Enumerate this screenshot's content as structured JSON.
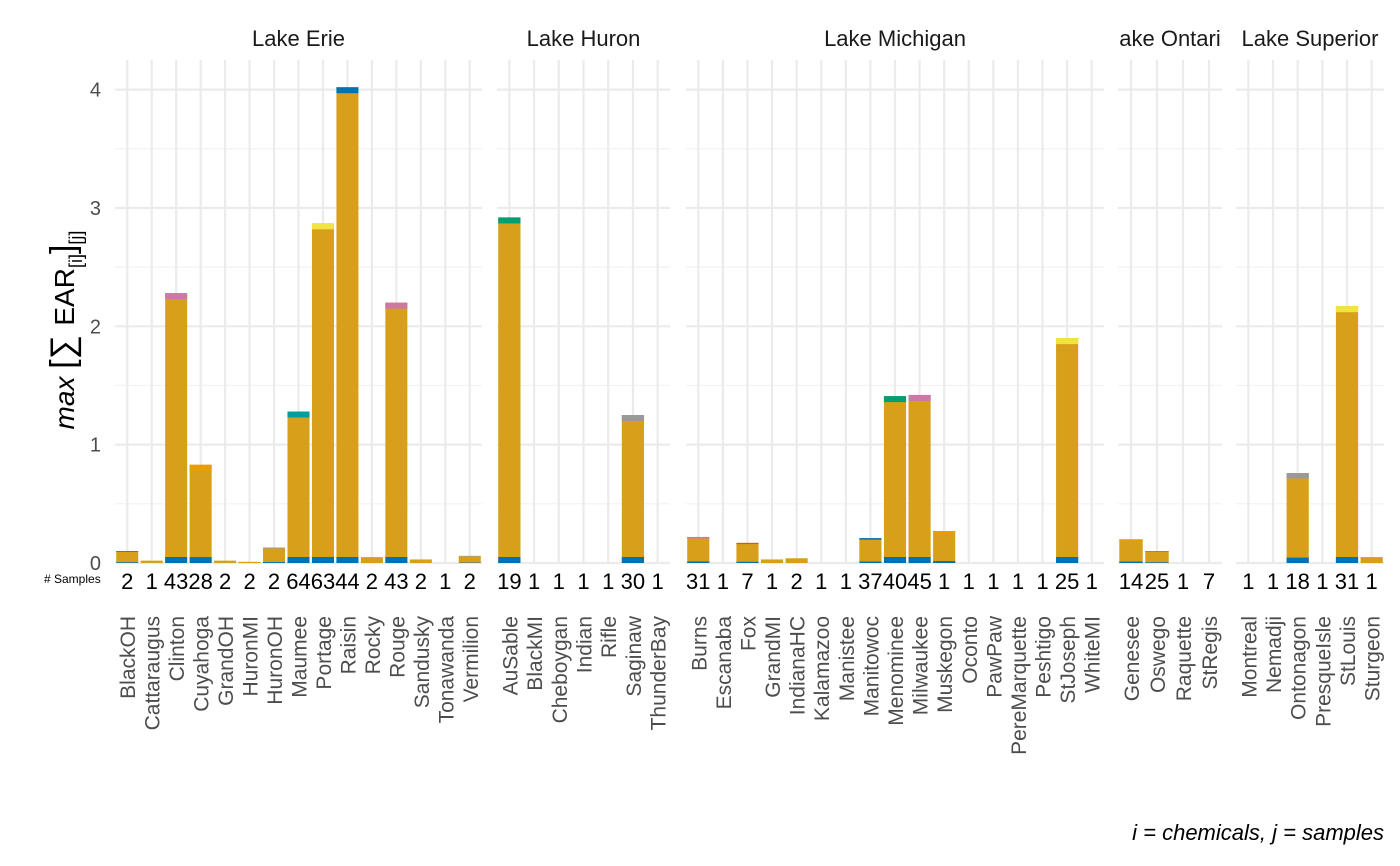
{
  "chart_data": {
    "type": "bar",
    "stacked": true,
    "facet_variable": "lake",
    "y_axis": {
      "label": "max [∑ EAR[i]][j]",
      "ylim": [
        0,
        4.2
      ],
      "ticks": [
        0,
        1,
        2,
        3,
        4
      ]
    },
    "grid": true,
    "legend": "none",
    "count_row_label": "# Samples",
    "caption": "i = chemicals, j = samples",
    "palette": [
      "#0072B2",
      "#009E73",
      "#CC79A7",
      "#E69F00",
      "#D55E00",
      "#56B4E9",
      "#999999",
      "#009E9E",
      "#F0E442"
    ],
    "panels": [
      {
        "title": "Lake Erie",
        "sites": [
          {
            "name": "BlackOH",
            "n": "2",
            "total": 0.1
          },
          {
            "name": "Cattaraugus",
            "n": "1",
            "total": 0.02
          },
          {
            "name": "Clinton",
            "n": "43",
            "total": 2.28
          },
          {
            "name": "Cuyahoga",
            "n": "28",
            "total": 0.83
          },
          {
            "name": "GrandOH",
            "n": "2",
            "total": 0.02
          },
          {
            "name": "HuronMI",
            "n": "2",
            "total": 0.01
          },
          {
            "name": "HuronOH",
            "n": "2",
            "total": 0.13
          },
          {
            "name": "Maumee",
            "n": "64",
            "total": 1.28
          },
          {
            "name": "Portage",
            "n": "63",
            "total": 2.87
          },
          {
            "name": "Raisin",
            "n": "44",
            "total": 4.02
          },
          {
            "name": "Rocky",
            "n": "2",
            "total": 0.05
          },
          {
            "name": "Rouge",
            "n": "43",
            "total": 2.2
          },
          {
            "name": "Sandusky",
            "n": "2",
            "total": 0.03
          },
          {
            "name": "Tonawanda",
            "n": "1",
            "total": 0.0
          },
          {
            "name": "Vermilion",
            "n": "2",
            "total": 0.06
          }
        ]
      },
      {
        "title": "Lake Huron",
        "sites": [
          {
            "name": "AuSable",
            "n": "19",
            "total": 2.92
          },
          {
            "name": "BlackMI",
            "n": "1",
            "total": 0.0
          },
          {
            "name": "Cheboygan",
            "n": "1",
            "total": 0.0
          },
          {
            "name": "Indian",
            "n": "1",
            "total": 0.0
          },
          {
            "name": "Rifle",
            "n": "1",
            "total": 0.0
          },
          {
            "name": "Saginaw",
            "n": "30",
            "total": 1.25
          },
          {
            "name": "ThunderBay",
            "n": "1",
            "total": 0.0
          }
        ]
      },
      {
        "title": "Lake Michigan",
        "sites": [
          {
            "name": "Burns",
            "n": "31",
            "total": 0.22
          },
          {
            "name": "Escanaba",
            "n": "1",
            "total": 0.0
          },
          {
            "name": "Fox",
            "n": "7",
            "total": 0.17
          },
          {
            "name": "GrandMI",
            "n": "1",
            "total": 0.03
          },
          {
            "name": "IndianaHC",
            "n": "2",
            "total": 0.04
          },
          {
            "name": "Kalamazoo",
            "n": "1",
            "total": 0.0
          },
          {
            "name": "Manistee",
            "n": "1",
            "total": 0.0
          },
          {
            "name": "Manitowoc",
            "n": "37",
            "total": 0.21
          },
          {
            "name": "Menominee",
            "n": "40",
            "total": 1.41
          },
          {
            "name": "Milwaukee",
            "n": "45",
            "total": 1.42
          },
          {
            "name": "Muskegon",
            "n": "1",
            "total": 0.27
          },
          {
            "name": "Oconto",
            "n": "1",
            "total": 0.0
          },
          {
            "name": "PawPaw",
            "n": "1",
            "total": 0.0
          },
          {
            "name": "PereMarquette",
            "n": "1",
            "total": 0.0
          },
          {
            "name": "Peshtigo",
            "n": "1",
            "total": 0.0
          },
          {
            "name": "StJoseph",
            "n": "25",
            "total": 1.9
          },
          {
            "name": "WhiteMI",
            "n": "1",
            "total": 0.0
          }
        ]
      },
      {
        "title": "ake Ontari",
        "sites": [
          {
            "name": "Genesee",
            "n": "14",
            "total": 0.2
          },
          {
            "name": "Oswego",
            "n": "25",
            "total": 0.1
          },
          {
            "name": "Raquette",
            "n": "1",
            "total": 0.0
          },
          {
            "name": "StRegis",
            "n": "7",
            "total": 0.0
          }
        ]
      },
      {
        "title": "Lake Superior",
        "sites": [
          {
            "name": "Montreal",
            "n": "1",
            "total": 0.0
          },
          {
            "name": "Nemadji",
            "n": "1",
            "total": 0.0
          },
          {
            "name": "Ontonagon",
            "n": "18",
            "total": 0.76
          },
          {
            "name": "PresqueIsle",
            "n": "1",
            "total": 0.0
          },
          {
            "name": "StLouis",
            "n": "31",
            "total": 2.17
          },
          {
            "name": "Sturgeon",
            "n": "1",
            "total": 0.05
          }
        ]
      }
    ]
  }
}
